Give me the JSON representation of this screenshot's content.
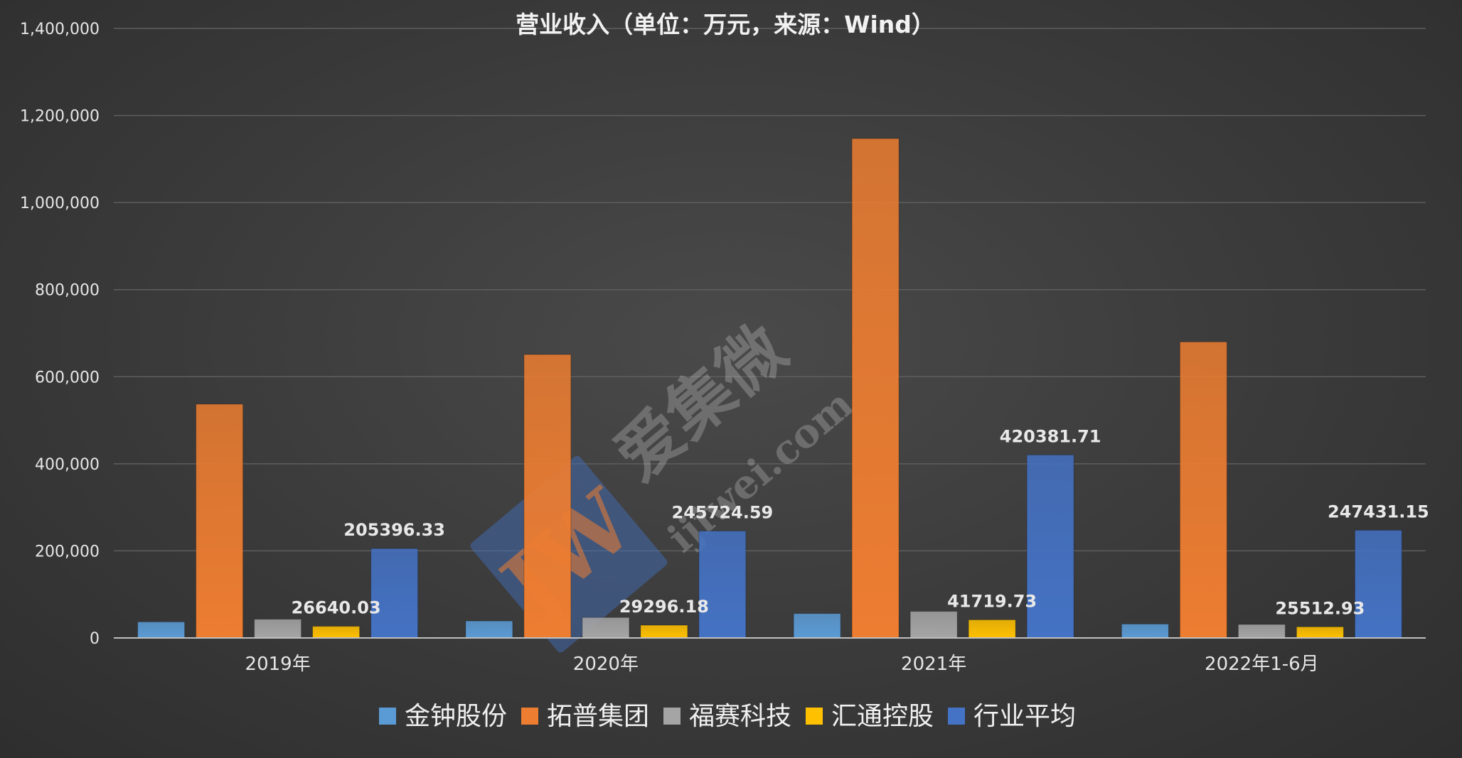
{
  "colors": {
    "series": [
      "#5b9bd5",
      "#ed7d31",
      "#a5a5a5",
      "#ffc000",
      "#4472c4"
    ],
    "grid": "#5e5e5e",
    "axis": "#bfbfbf"
  },
  "watermark": {
    "brand": "爱集微",
    "url": "ijiwei.com",
    "logo_text": "JW"
  },
  "chart_data": {
    "type": "bar",
    "title": "营业收入（单位：万元，来源：Wind）",
    "categories": [
      "2019年",
      "2020年",
      "2021年",
      "2022年1-6月"
    ],
    "series": [
      {
        "name": "金钟股份",
        "values": [
          37000,
          39000,
          56000,
          32000
        ]
      },
      {
        "name": "拓普集团",
        "values": [
          537000,
          651000,
          1147000,
          680000
        ]
      },
      {
        "name": "福赛科技",
        "values": [
          43000,
          47000,
          61000,
          31000
        ]
      },
      {
        "name": "汇通控股",
        "values": [
          26640.03,
          29296.18,
          41719.73,
          25512.93
        ]
      },
      {
        "name": "行业平均",
        "values": [
          205396.33,
          245724.59,
          420381.71,
          247431.15
        ]
      }
    ],
    "data_labels": [
      {
        "series": 3,
        "labels": [
          "26640.03",
          "29296.18",
          "41719.73",
          "25512.93"
        ]
      },
      {
        "series": 4,
        "labels": [
          "205396.33",
          "245724.59",
          "420381.71",
          "247431.15"
        ]
      }
    ],
    "ylim": [
      0,
      1400000
    ],
    "yticks": [
      0,
      200000,
      400000,
      600000,
      800000,
      1000000,
      1200000,
      1400000
    ],
    "ytick_labels": [
      "0",
      "200,000",
      "400,000",
      "600,000",
      "800,000",
      "1,000,000",
      "1,200,000",
      "1,400,000"
    ],
    "grid": true,
    "legend_position": "bottom"
  }
}
